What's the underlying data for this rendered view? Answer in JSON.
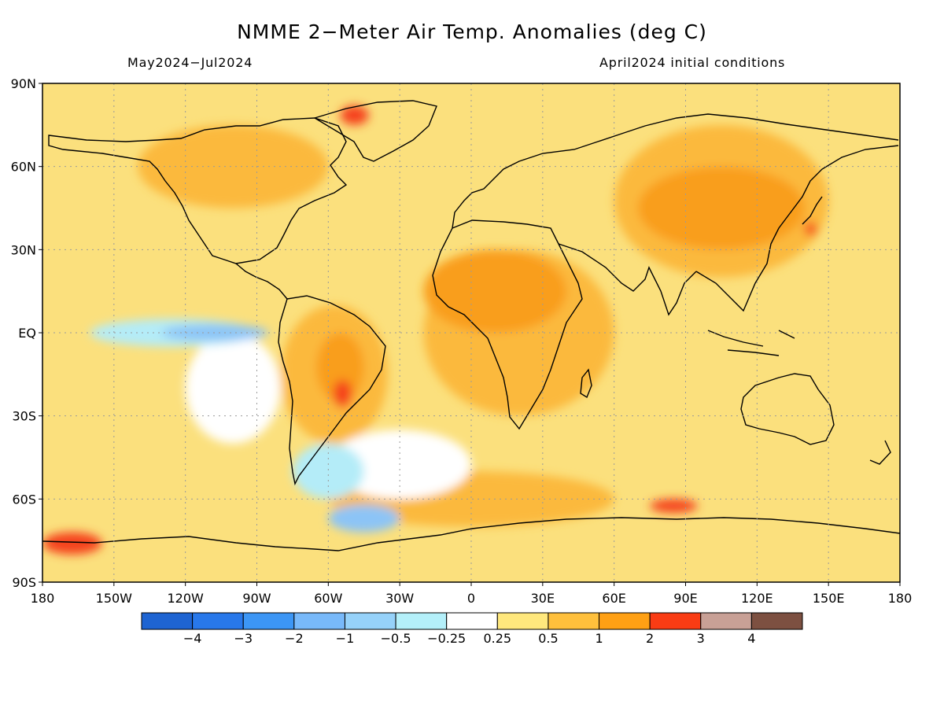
{
  "title": "NMME 2−Meter Air Temp. Anomalies (deg C)",
  "subtitle_left": "May2024−Jul2024",
  "subtitle_right": "April2024 initial conditions",
  "map": {
    "projection": "equirectangular",
    "lon_range": [
      -180,
      180
    ],
    "lat_range": [
      -90,
      90
    ],
    "lat_labels": [
      {
        "lat": 90,
        "label": "90N"
      },
      {
        "lat": 60,
        "label": "60N"
      },
      {
        "lat": 30,
        "label": "30N"
      },
      {
        "lat": 0,
        "label": "EQ"
      },
      {
        "lat": -30,
        "label": "30S"
      },
      {
        "lat": -60,
        "label": "60S"
      },
      {
        "lat": -90,
        "label": "90S"
      }
    ],
    "lon_labels": [
      {
        "lon": -180,
        "label": "180"
      },
      {
        "lon": -150,
        "label": "150W"
      },
      {
        "lon": -120,
        "label": "120W"
      },
      {
        "lon": -90,
        "label": "90W"
      },
      {
        "lon": -60,
        "label": "60W"
      },
      {
        "lon": -30,
        "label": "30W"
      },
      {
        "lon": 0,
        "label": "0"
      },
      {
        "lon": 30,
        "label": "30E"
      },
      {
        "lon": 60,
        "label": "60E"
      },
      {
        "lon": 90,
        "label": "90E"
      },
      {
        "lon": 120,
        "label": "120E"
      },
      {
        "lon": 150,
        "label": "150E"
      },
      {
        "lon": 180,
        "label": "180"
      }
    ],
    "background_color": "#fbe07d",
    "grid": "dotted"
  },
  "colorbar": {
    "colors": [
      "#1e64d2",
      "#2878ea",
      "#3c96f5",
      "#78b9fa",
      "#96d2fa",
      "#b4f0fa",
      "#ffffff",
      "#ffe87d",
      "#ffc03c",
      "#ffa014",
      "#fa3c14",
      "#c8a096",
      "#7d5041"
    ],
    "labels": [
      "−4",
      "−3",
      "−2",
      "−1",
      "−0.5",
      "−0.25",
      "0.25",
      "0.5",
      "1",
      "2",
      "3",
      "4"
    ]
  },
  "anomaly_regions": [
    {
      "level": "0.5-1",
      "color": "#fbb93c",
      "lon": [
        -20,
        60
      ],
      "lat": [
        -30,
        30
      ]
    },
    {
      "level": "0.5-1",
      "color": "#fbb93c",
      "lon": [
        60,
        150
      ],
      "lat": [
        20,
        75
      ]
    },
    {
      "level": "0.5-1",
      "color": "#fbb93c",
      "lon": [
        -140,
        -60
      ],
      "lat": [
        45,
        75
      ]
    },
    {
      "level": "0.5-1",
      "color": "#fbb93c",
      "lon": [
        -80,
        -35
      ],
      "lat": [
        -40,
        10
      ]
    },
    {
      "level": "0.5-1",
      "color": "#fbb93c",
      "lon": [
        -60,
        60
      ],
      "lat": [
        -70,
        -50
      ]
    },
    {
      "level": "1-2",
      "color": "#f99e1e",
      "lon": [
        -20,
        40
      ],
      "lat": [
        0,
        30
      ]
    },
    {
      "level": "1-2",
      "color": "#f99e1e",
      "lon": [
        70,
        140
      ],
      "lat": [
        30,
        60
      ]
    },
    {
      "level": "1-2",
      "color": "#f99e1e",
      "lon": [
        -65,
        -45
      ],
      "lat": [
        -25,
        0
      ]
    },
    {
      "level": "2-3",
      "color": "#f5421a",
      "lon": [
        -58,
        -50
      ],
      "lat": [
        -27,
        -17
      ]
    },
    {
      "level": "2-3",
      "color": "#f5421a",
      "lon": [
        75,
        95
      ],
      "lat": [
        -65,
        -60
      ]
    },
    {
      "level": "2-3",
      "color": "#f5421a",
      "lon": [
        140,
        145
      ],
      "lat": [
        35,
        40
      ]
    },
    {
      "level": "2-3",
      "color": "#f5421a",
      "lon": [
        -180,
        -155
      ],
      "lat": [
        -80,
        -72
      ]
    },
    {
      "level": "2-3",
      "color": "#f5421a",
      "lon": [
        -55,
        -43
      ],
      "lat": [
        75,
        82
      ]
    },
    {
      "level": "0.25-0.5",
      "color": "#ffffff",
      "lon": [
        -120,
        -80
      ],
      "lat": [
        -40,
        0
      ]
    },
    {
      "level": "0.25-0.5",
      "color": "#ffffff",
      "lon": [
        -60,
        0
      ],
      "lat": [
        -60,
        -35
      ]
    },
    {
      "level": "-0.5 to -0.25",
      "color": "#b4ecf8",
      "lon": [
        -75,
        -45
      ],
      "lat": [
        -60,
        -40
      ]
    },
    {
      "level": "-0.5 to -0.25",
      "color": "#b4ecf8",
      "lon": [
        -160,
        -90
      ],
      "lat": [
        -5,
        5
      ]
    },
    {
      "level": "-1 to -0.5",
      "color": "#8cc4f6",
      "lon": [
        -130,
        -85
      ],
      "lat": [
        -3,
        3
      ]
    },
    {
      "level": "-1 to -0.5",
      "color": "#8cc4f6",
      "lon": [
        -60,
        -30
      ],
      "lat": [
        -72,
        -62
      ]
    }
  ]
}
